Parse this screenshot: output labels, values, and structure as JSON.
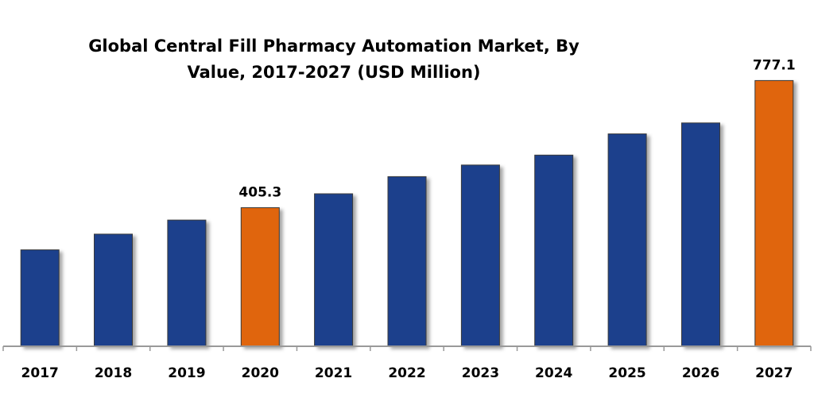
{
  "chart_data": {
    "type": "bar",
    "title_line1": "Global Central Fill Pharmacy Automation Market, By",
    "title_line2": "Value, 2017-2027 (USD Million)",
    "xlabel": "",
    "ylabel": "",
    "categories": [
      "2017",
      "2018",
      "2019",
      "2020",
      "2021",
      "2022",
      "2023",
      "2024",
      "2025",
      "2026",
      "2027"
    ],
    "values": [
      282,
      328,
      369,
      405.3,
      446,
      496,
      530,
      559,
      621,
      653,
      777.1
    ],
    "data_labels": [
      "",
      "",
      "",
      "405.3",
      "",
      "",
      "",
      "",
      "",
      "",
      "777.1"
    ],
    "highlight": [
      false,
      false,
      false,
      true,
      false,
      false,
      false,
      false,
      false,
      false,
      true
    ],
    "ylim": [
      0,
      850
    ],
    "grid": false,
    "legend": "none",
    "colors": {
      "bar": "#1a3f8c",
      "highlight": "#e0650d",
      "axis": "#999999"
    }
  }
}
